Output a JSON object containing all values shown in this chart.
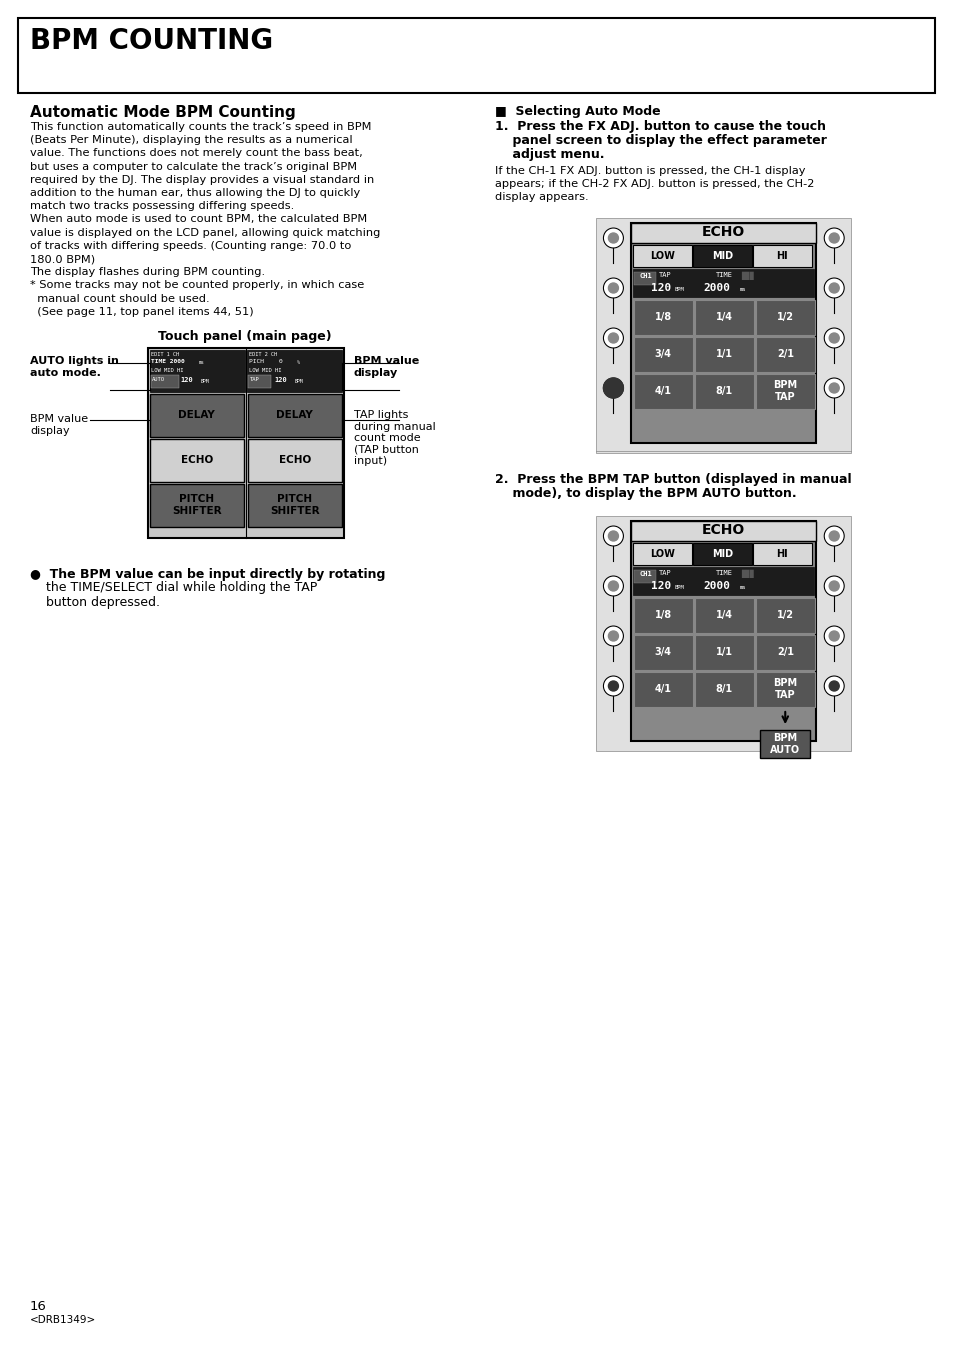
{
  "title": "BPM COUNTING",
  "section_title": "Automatic Mode BPM Counting",
  "body_text_left": [
    "This function automatically counts the track’s speed in BPM",
    "(Beats Per Minute), displaying the results as a numerical",
    "value. The functions does not merely count the bass beat,",
    "but uses a computer to calculate the track’s original BPM",
    "required by the DJ. The display provides a visual standard in",
    "addition to the human ear, thus allowing the DJ to quickly",
    "match two tracks possessing differing speeds.",
    "When auto mode is used to count BPM, the calculated BPM",
    "value is displayed on the LCD panel, allowing quick matching",
    "of tracks with differing speeds. (Counting range: 70.0 to",
    "180.0 BPM)",
    "The display flashes during BPM counting.",
    "* Some tracks may not be counted properly, in which case",
    "  manual count should be used.",
    "  (See page 11, top panel items 44, 51)"
  ],
  "touch_panel_label": "Touch panel (main page)",
  "bullet_text_bold": "●  The BPM value can be input directly by rotating",
  "bullet_text_cont": "    the TIME/SELECT dial while holding the TAP\n    button depressed.",
  "right_section_header": "■  Selecting Auto Mode",
  "right_step1_bold": "1.  Press the FX ADJ. button to cause the touch\n    panel screen to display the effect parameter\n    adjust menu.",
  "right_step1_normal": "If the CH-1 FX ADJ. button is pressed, the CH-1 display\nappears; if the CH-2 FX ADJ. button is pressed, the CH-2\ndisplay appears.",
  "right_step2_bold": "2.  Press the BPM TAP button (displayed in manual\n    mode), to display the BPM AUTO button.",
  "page_number": "16",
  "drb_code": "<DRB1349>",
  "bg_color": "#ffffff",
  "text_color": "#000000"
}
